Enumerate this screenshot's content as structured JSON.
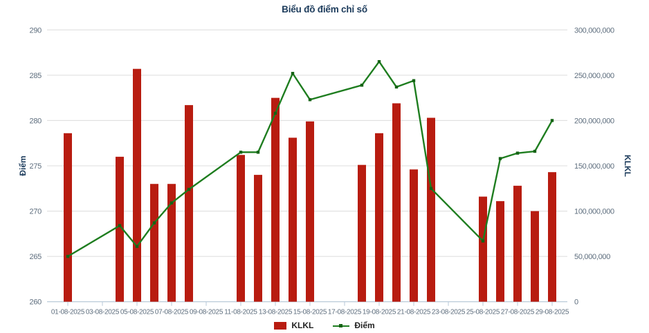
{
  "chart_data": {
    "type": "bar+line dual-axis",
    "title": "Biểu đồ điểm chỉ số",
    "categories": [
      "01-08-2025",
      "04-08-2025",
      "05-08-2025",
      "06-08-2025",
      "07-08-2025",
      "08-08-2025",
      "11-08-2025",
      "12-08-2025",
      "13-08-2025",
      "14-08-2025",
      "15-08-2025",
      "18-08-2025",
      "19-08-2025",
      "20-08-2025",
      "21-08-2025",
      "22-08-2025",
      "25-08-2025",
      "26-08-2025",
      "27-08-2025",
      "28-08-2025",
      "29-08-2025"
    ],
    "day_of_month": [
      1,
      4,
      5,
      6,
      7,
      8,
      11,
      12,
      13,
      14,
      15,
      18,
      19,
      20,
      21,
      22,
      25,
      26,
      27,
      28,
      29
    ],
    "series": [
      {
        "name": "KLKL",
        "type": "bar",
        "axis": "right",
        "color": "#B81C10",
        "values": [
          186000000,
          160000000,
          257000000,
          130000000,
          130000000,
          217000000,
          162000000,
          140000000,
          225000000,
          181000000,
          199000000,
          151000000,
          186000000,
          219000000,
          146000000,
          203000000,
          116000000,
          111000000,
          128000000,
          100000000,
          143000000
        ]
      },
      {
        "name": "Điểm",
        "type": "line",
        "axis": "left",
        "color": "#1E7D1F",
        "marker_color": "#156315",
        "values": [
          265.0,
          268.4,
          266.1,
          268.7,
          270.9,
          272.4,
          276.5,
          276.5,
          280.8,
          285.2,
          282.3,
          283.9,
          286.5,
          283.7,
          284.4,
          272.5,
          266.7,
          275.8,
          276.4,
          276.6,
          280.0
        ]
      }
    ],
    "left_axis": {
      "title": "Điểm",
      "min": 260,
      "max": 290,
      "ticks": [
        260,
        265,
        270,
        275,
        280,
        285,
        290
      ]
    },
    "right_axis": {
      "title": "KLKL",
      "min": 0,
      "max": 300000000,
      "tick_values": [
        0,
        50000000,
        100000000,
        150000000,
        200000000,
        250000000,
        300000000
      ],
      "tick_labels": [
        "0",
        "50,000,000",
        "100,000,000",
        "150,000,000",
        "200,000,000",
        "250,000,000",
        "300,000,000"
      ]
    },
    "x_axis": {
      "tick_days": [
        1,
        3,
        5,
        7,
        9,
        11,
        13,
        15,
        17,
        19,
        21,
        23,
        25,
        27,
        29
      ],
      "tick_labels": [
        "01-08-2025",
        "03-08-2025",
        "05-08-2025",
        "07-08-2025",
        "09-08-2025",
        "11-08-2025",
        "13-08-2025",
        "15-08-2025",
        "17-08-2025",
        "19-08-2025",
        "21-08-2025",
        "23-08-2025",
        "25-08-2025",
        "27-08-2025",
        "29-08-2025"
      ]
    },
    "legend": {
      "position": "bottom-center",
      "items": [
        "KLKL",
        "Điểm"
      ]
    },
    "style": {
      "gridline_color": "#DCDCDC",
      "axis_line_color": "#B7C9DA",
      "tick_label_color": "#5E6E7E",
      "title_color": "#1D3C5C",
      "grid": "horizontal-only",
      "background": "#FFFFFF"
    }
  }
}
